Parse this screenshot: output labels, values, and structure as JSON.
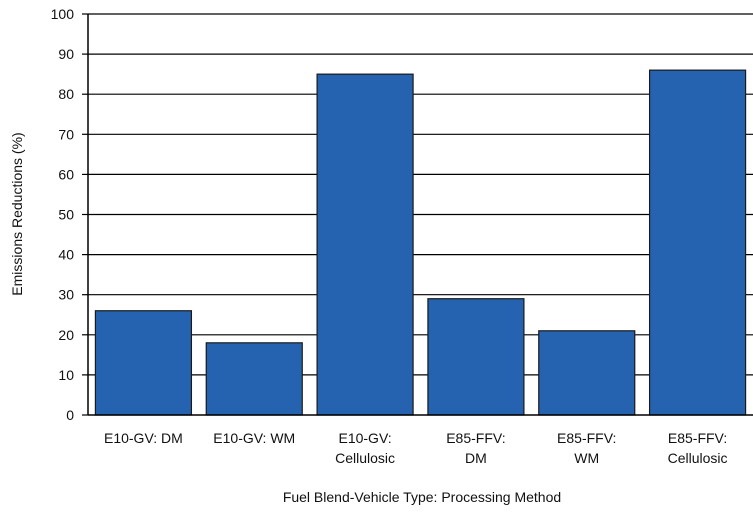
{
  "chart_data": {
    "type": "bar",
    "title": "",
    "xlabel": "Fuel Blend-Vehicle Type: Processing Method",
    "ylabel": "Emissions Reductions (%)",
    "ylim": [
      0,
      100
    ],
    "yticks": [
      0,
      10,
      20,
      30,
      40,
      50,
      60,
      70,
      80,
      90,
      100
    ],
    "grid": true,
    "legend": "none",
    "bar_color": "#2563b0",
    "bar_edge_color": "#1a1a1a",
    "categories": [
      [
        "E10-GV: DM"
      ],
      [
        "E10-GV: WM"
      ],
      [
        "E10-GV:",
        "Cellulosic"
      ],
      [
        "E85-FFV:",
        "DM"
      ],
      [
        "E85-FFV:",
        "WM"
      ],
      [
        "E85-FFV:",
        "Cellulosic"
      ]
    ],
    "values": [
      26,
      18,
      85,
      29,
      21,
      86
    ]
  }
}
